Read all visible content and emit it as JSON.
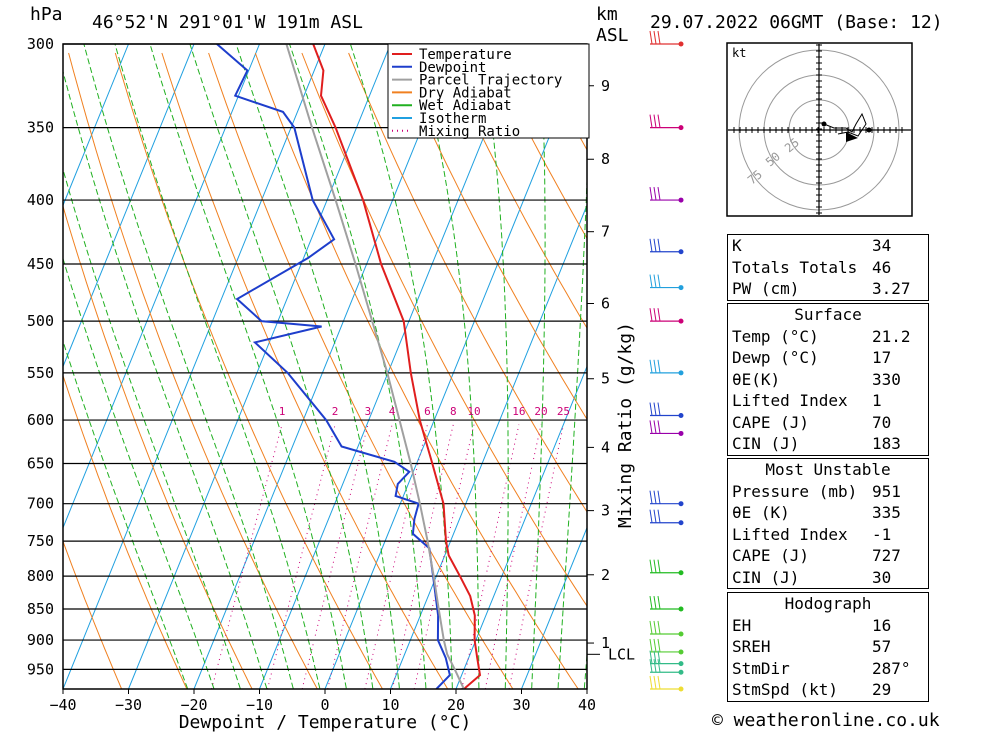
{
  "header": {
    "pressure_unit": "hPa",
    "location": "46°52'N  291°01'W  191m  ASL",
    "km_label": "km",
    "asl_label": "ASL",
    "datetime": "29.07.2022  06GMT  (Base: 12)"
  },
  "chart_data": {
    "type": "line",
    "xlabel": "Dewpoint / Temperature (°C)",
    "ylabel": "hPa",
    "xlim": [
      -40,
      40
    ],
    "ylim": [
      985,
      300
    ],
    "skew": true,
    "pressure_ticks": [
      300,
      350,
      400,
      450,
      500,
      550,
      600,
      650,
      700,
      750,
      800,
      850,
      900,
      950
    ],
    "temperature_ticks": [
      -40,
      -30,
      -20,
      -10,
      0,
      10,
      20,
      30,
      40
    ],
    "height_axis_label": "km",
    "height_ticks": [
      {
        "label": "1",
        "p": 905
      },
      {
        "label": "2",
        "p": 798
      },
      {
        "label": "3",
        "p": 709
      },
      {
        "label": "4",
        "p": 631
      },
      {
        "label": "5",
        "p": 556
      },
      {
        "label": "6",
        "p": 484
      },
      {
        "label": "7",
        "p": 424
      },
      {
        "label": "8",
        "p": 371
      },
      {
        "label": "9",
        "p": 324
      }
    ],
    "lcl_label": "LCL",
    "lcl_pressure": 924,
    "mixing_ratio_axis_label": "Mixing Ratio (g/kg)",
    "mixing_ratio_values": [
      "1",
      "2",
      "3",
      "4",
      "6",
      "8",
      "10",
      "16",
      "20",
      "25"
    ],
    "series": [
      {
        "name": "Temperature",
        "color": "#e01e1e",
        "points": [
          [
            985,
            21.2
          ],
          [
            960,
            22.8
          ],
          [
            930,
            21.3
          ],
          [
            900,
            19.8
          ],
          [
            860,
            18.3
          ],
          [
            830,
            16.4
          ],
          [
            800,
            13.6
          ],
          [
            770,
            10.6
          ],
          [
            750,
            9.3
          ],
          [
            700,
            6.6
          ],
          [
            650,
            2.4
          ],
          [
            600,
            -2.2
          ],
          [
            550,
            -6.5
          ],
          [
            500,
            -10.8
          ],
          [
            480,
            -13.5
          ],
          [
            450,
            -17.8
          ],
          [
            400,
            -24.5
          ],
          [
            350,
            -33.2
          ],
          [
            330,
            -37.4
          ],
          [
            315,
            -38.6
          ],
          [
            300,
            -41.8
          ]
        ]
      },
      {
        "name": "Dewpoint",
        "color": "#1e3ecc",
        "points": [
          [
            985,
            17
          ],
          [
            960,
            18.2
          ],
          [
            930,
            16.5
          ],
          [
            900,
            14.2
          ],
          [
            860,
            12.7
          ],
          [
            800,
            9.5
          ],
          [
            760,
            7.2
          ],
          [
            740,
            3.8
          ],
          [
            720,
            3.1
          ],
          [
            700,
            2.8
          ],
          [
            690,
            -1.2
          ],
          [
            675,
            -1.6
          ],
          [
            660,
            -0.6
          ],
          [
            648,
            -3.5
          ],
          [
            630,
            -12.5
          ],
          [
            600,
            -16.5
          ],
          [
            550,
            -25.3
          ],
          [
            520,
            -32.2
          ],
          [
            505,
            -23
          ],
          [
            500,
            -32.5
          ],
          [
            480,
            -37.6
          ],
          [
            445,
            -29.3
          ],
          [
            430,
            -26.5
          ],
          [
            400,
            -32.2
          ],
          [
            350,
            -39.5
          ],
          [
            340,
            -42.2
          ],
          [
            330,
            -50.5
          ],
          [
            315,
            -50.2
          ],
          [
            300,
            -56.5
          ]
        ]
      },
      {
        "name": "Parcel Trajectory",
        "color": "#a0a0a0",
        "points": [
          [
            985,
            21.2
          ],
          [
            950,
            18.6
          ],
          [
            924,
            16.5
          ],
          [
            900,
            15.1
          ],
          [
            850,
            12.4
          ],
          [
            800,
            9.6
          ],
          [
            750,
            6.5
          ],
          [
            700,
            3
          ],
          [
            650,
            -0.9
          ],
          [
            600,
            -5.3
          ],
          [
            550,
            -10.1
          ],
          [
            500,
            -15.6
          ],
          [
            450,
            -21.7
          ],
          [
            400,
            -28.7
          ],
          [
            350,
            -36.8
          ],
          [
            300,
            -45.9
          ]
        ]
      }
    ],
    "background_lines": [
      "Dry Adiabat",
      "Wet Adiabat",
      "Isotherm",
      "Mixing Ratio"
    ],
    "colors": {
      "dry_adiabat": "#f08020",
      "wet_adiabat": "#20b020",
      "isotherm": "#20a0e0",
      "mixing_ratio": "#cc0077",
      "temperature": "#e01e1e",
      "dewpoint": "#1e3ecc",
      "parcel": "#a0a0a0"
    }
  },
  "legend": [
    {
      "label": "Temperature",
      "color": "#e01e1e",
      "style": "solid"
    },
    {
      "label": "Dewpoint",
      "color": "#1e3ecc",
      "style": "solid"
    },
    {
      "label": "Parcel Trajectory",
      "color": "#a0a0a0",
      "style": "solid"
    },
    {
      "label": "Dry Adiabat",
      "color": "#f08020",
      "style": "solid"
    },
    {
      "label": "Wet Adiabat",
      "color": "#20b020",
      "style": "solid"
    },
    {
      "label": "Isotherm",
      "color": "#20a0e0",
      "style": "solid"
    },
    {
      "label": "Mixing Ratio",
      "color": "#cc0077",
      "style": "dotted"
    }
  ],
  "wind_barbs": [
    {
      "p": 300,
      "color": "#e03030"
    },
    {
      "p": 350,
      "color": "#cc0077"
    },
    {
      "p": 400,
      "color": "#9900aa"
    },
    {
      "p": 440,
      "color": "#2244cc"
    },
    {
      "p": 470,
      "color": "#22a0dd"
    },
    {
      "p": 500,
      "color": "#cc0077"
    },
    {
      "p": 550,
      "color": "#22a0dd"
    },
    {
      "p": 595,
      "color": "#2244cc"
    },
    {
      "p": 615,
      "color": "#9900aa"
    },
    {
      "p": 700,
      "color": "#2244cc"
    },
    {
      "p": 725,
      "color": "#2244cc"
    },
    {
      "p": 795,
      "color": "#22bb22"
    },
    {
      "p": 850,
      "color": "#22bb22"
    },
    {
      "p": 890,
      "color": "#55cc33"
    },
    {
      "p": 920,
      "color": "#55cc33"
    },
    {
      "p": 940,
      "color": "#33bb88"
    },
    {
      "p": 955,
      "color": "#33bb88"
    },
    {
      "p": 985,
      "color": "#eedd33"
    }
  ],
  "hodograph": {
    "unit_label": "kt",
    "rings": [
      "25",
      "50",
      "75"
    ]
  },
  "indices": [
    {
      "label": "K",
      "value": "34"
    },
    {
      "label": "Totals Totals",
      "value": "46"
    },
    {
      "label": "PW (cm)",
      "value": "3.27"
    }
  ],
  "surface": {
    "title": "Surface",
    "rows": [
      {
        "label": "Temp (°C)",
        "value": "21.2"
      },
      {
        "label": "Dewp (°C)",
        "value": "17"
      },
      {
        "label": "θE(K)",
        "value": "330"
      },
      {
        "label": "Lifted Index",
        "value": "1"
      },
      {
        "label": "CAPE (J)",
        "value": "70"
      },
      {
        "label": "CIN (J)",
        "value": "183"
      }
    ]
  },
  "most_unstable": {
    "title": "Most Unstable",
    "rows": [
      {
        "label": "Pressure (mb)",
        "value": "951"
      },
      {
        "label": "θE (K)",
        "value": "335"
      },
      {
        "label": "Lifted Index",
        "value": "-1"
      },
      {
        "label": "CAPE (J)",
        "value": "727"
      },
      {
        "label": "CIN (J)",
        "value": "30"
      }
    ]
  },
  "hodograph_indices": {
    "title": "Hodograph",
    "rows": [
      {
        "label": "EH",
        "value": "16"
      },
      {
        "label": "SREH",
        "value": "57"
      },
      {
        "label": "StmDir",
        "value": "287°"
      },
      {
        "label": "StmSpd (kt)",
        "value": "29"
      }
    ]
  },
  "credit": "© weatheronline.co.uk"
}
